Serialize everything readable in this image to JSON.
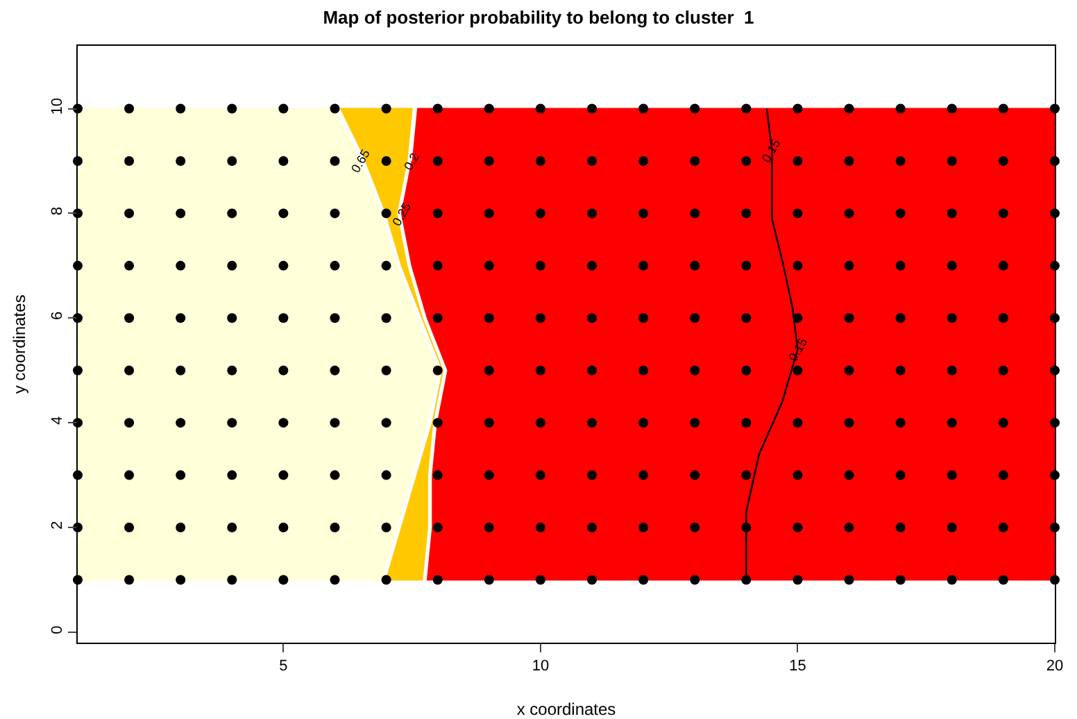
{
  "chart_data": {
    "type": "scatter",
    "title": "Map of posterior probability to belong to cluster  1",
    "xlabel": "x coordinates",
    "ylabel": "y coordinates",
    "xlim": [
      1,
      20
    ],
    "xticks": [
      5,
      10,
      15,
      20
    ],
    "ylim": [
      -0.2,
      11.2
    ],
    "yticks": [
      0,
      2,
      4,
      6,
      8,
      10
    ],
    "grid": false,
    "series": [
      {
        "type": "area",
        "color": "#ffc800",
        "x": [
          6.1,
          7.5,
          7.4,
          7.2,
          7.4,
          7.7,
          8.1,
          7.9,
          7.8,
          7.8,
          7.7,
          7.0,
          7.3,
          7.6,
          7.9,
          8.1,
          7.7,
          7.3,
          7.0,
          6.6
        ],
        "values": [
          10,
          10,
          9,
          8,
          7,
          6,
          5,
          4,
          3,
          2,
          1,
          1,
          2,
          3,
          4,
          5,
          6,
          7,
          8,
          9
        ]
      },
      {
        "type": "area",
        "color": "#ffffd9",
        "x": [
          1,
          6.0,
          6.5,
          6.9,
          7.2,
          7.6,
          8.0,
          7.8,
          7.5,
          7.2,
          6.9,
          1
        ],
        "values": [
          10,
          10,
          9,
          8,
          7,
          6,
          5,
          4,
          3,
          2,
          1,
          1
        ]
      },
      {
        "type": "area",
        "color": "#ff0000",
        "x": [
          7.6,
          20,
          20,
          7.8,
          7.9,
          7.9,
          8.0,
          8.2,
          7.8,
          7.5,
          7.3,
          7.5
        ],
        "values": [
          10,
          10,
          1,
          1,
          2,
          3,
          4,
          5,
          6,
          7,
          8,
          9
        ]
      },
      {
        "type": "line",
        "color": "#000000",
        "x": [
          14.0,
          14.0,
          14.25,
          14.7,
          15.0,
          14.9,
          14.7,
          14.5,
          14.5,
          14.5,
          14.4
        ],
        "values": [
          1,
          2.3,
          3.4,
          4.4,
          5.4,
          6.2,
          7.1,
          7.9,
          8.5,
          9.2,
          10
        ]
      },
      {
        "color": "#000000",
        "marker": "circle",
        "x": [
          1,
          2,
          3,
          4,
          5,
          6,
          7,
          8,
          9,
          10,
          11,
          12,
          13,
          14,
          15,
          16,
          17,
          18,
          19,
          20,
          1,
          2,
          3,
          4,
          5,
          6,
          7,
          8,
          9,
          10,
          11,
          12,
          13,
          14,
          15,
          16,
          17,
          18,
          19,
          20,
          1,
          2,
          3,
          4,
          5,
          6,
          7,
          8,
          9,
          10,
          11,
          12,
          13,
          14,
          15,
          16,
          17,
          18,
          19,
          20,
          1,
          2,
          3,
          4,
          5,
          6,
          7,
          8,
          9,
          10,
          11,
          12,
          13,
          14,
          15,
          16,
          17,
          18,
          19,
          20,
          1,
          2,
          3,
          4,
          5,
          6,
          7,
          8,
          9,
          10,
          11,
          12,
          13,
          14,
          15,
          16,
          17,
          18,
          19,
          20,
          1,
          2,
          3,
          4,
          5,
          6,
          7,
          8,
          9,
          10,
          11,
          12,
          13,
          14,
          15,
          16,
          17,
          18,
          19,
          20,
          1,
          2,
          3,
          4,
          5,
          6,
          7,
          8,
          9,
          10,
          11,
          12,
          13,
          14,
          15,
          16,
          17,
          18,
          19,
          20,
          1,
          2,
          3,
          4,
          5,
          6,
          7,
          8,
          9,
          10,
          11,
          12,
          13,
          14,
          15,
          16,
          17,
          18,
          19,
          20,
          1,
          2,
          3,
          4,
          5,
          6,
          7,
          8,
          9,
          10,
          11,
          12,
          13,
          14,
          15,
          16,
          17,
          18,
          19,
          20,
          1,
          2,
          3,
          4,
          5,
          6,
          7,
          8,
          9,
          10,
          11,
          12,
          13,
          14,
          15,
          16,
          17,
          18,
          19,
          20
        ],
        "values": [
          1,
          1,
          1,
          1,
          1,
          1,
          1,
          1,
          1,
          1,
          1,
          1,
          1,
          1,
          1,
          1,
          1,
          1,
          1,
          1,
          2,
          2,
          2,
          2,
          2,
          2,
          2,
          2,
          2,
          2,
          2,
          2,
          2,
          2,
          2,
          2,
          2,
          2,
          2,
          2,
          3,
          3,
          3,
          3,
          3,
          3,
          3,
          3,
          3,
          3,
          3,
          3,
          3,
          3,
          3,
          3,
          3,
          3,
          3,
          3,
          4,
          4,
          4,
          4,
          4,
          4,
          4,
          4,
          4,
          4,
          4,
          4,
          4,
          4,
          4,
          4,
          4,
          4,
          4,
          4,
          5,
          5,
          5,
          5,
          5,
          5,
          5,
          5,
          5,
          5,
          5,
          5,
          5,
          5,
          5,
          5,
          5,
          5,
          5,
          5,
          6,
          6,
          6,
          6,
          6,
          6,
          6,
          6,
          6,
          6,
          6,
          6,
          6,
          6,
          6,
          6,
          6,
          6,
          6,
          6,
          7,
          7,
          7,
          7,
          7,
          7,
          7,
          7,
          7,
          7,
          7,
          7,
          7,
          7,
          7,
          7,
          7,
          7,
          7,
          7,
          8,
          8,
          8,
          8,
          8,
          8,
          8,
          8,
          8,
          8,
          8,
          8,
          8,
          8,
          8,
          8,
          8,
          8,
          8,
          8,
          9,
          9,
          9,
          9,
          9,
          9,
          9,
          9,
          9,
          9,
          9,
          9,
          9,
          9,
          9,
          9,
          9,
          9,
          9,
          9,
          10,
          10,
          10,
          10,
          10,
          10,
          10,
          10,
          10,
          10,
          10,
          10,
          10,
          10,
          10,
          10,
          10,
          10,
          10,
          10
        ]
      }
    ],
    "annotations": [
      {
        "text": "0.2",
        "x": 7.5,
        "y": 9
      },
      {
        "text": "0.25",
        "x": 7.3,
        "y": 8
      },
      {
        "text": "0.65",
        "x": 6.5,
        "y": 9
      },
      {
        "text": "0.15",
        "x": 14.5,
        "y": 9.2
      },
      {
        "text": "0.15",
        "x": 15.0,
        "y": 5.4
      }
    ]
  }
}
